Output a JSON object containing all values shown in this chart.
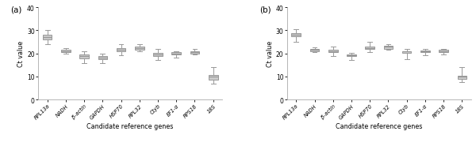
{
  "categories": [
    "RPL13a",
    "NADH",
    "β-actin",
    "GAPDH",
    "HSP70",
    "RPL32",
    "Ctyb",
    "EF1-α",
    "RPS18",
    "18S"
  ],
  "panel_a": {
    "whisker_low": [
      24.0,
      19.8,
      15.8,
      15.8,
      19.2,
      20.8,
      17.0,
      18.2,
      19.5,
      7.0
    ],
    "q1": [
      26.2,
      20.5,
      18.0,
      17.5,
      20.8,
      21.5,
      19.0,
      19.5,
      20.0,
      8.5
    ],
    "median": [
      27.2,
      21.0,
      18.8,
      18.2,
      21.5,
      22.2,
      19.5,
      20.0,
      20.5,
      9.8
    ],
    "q3": [
      28.0,
      21.5,
      19.5,
      18.8,
      22.2,
      23.0,
      20.2,
      20.5,
      21.0,
      10.5
    ],
    "whisker_high": [
      30.2,
      22.2,
      20.8,
      20.0,
      24.0,
      24.0,
      21.8,
      21.0,
      22.0,
      14.0
    ]
  },
  "panel_b": {
    "whisker_low": [
      25.0,
      20.5,
      19.0,
      17.0,
      20.5,
      21.5,
      17.5,
      19.2,
      19.5,
      7.5
    ],
    "q1": [
      27.5,
      21.0,
      20.5,
      18.8,
      21.8,
      22.0,
      20.2,
      20.5,
      20.5,
      9.0
    ],
    "median": [
      28.2,
      21.5,
      21.0,
      19.2,
      22.2,
      22.8,
      20.8,
      21.0,
      21.0,
      9.8
    ],
    "q3": [
      28.8,
      21.8,
      21.5,
      19.5,
      23.0,
      23.2,
      21.0,
      21.2,
      21.5,
      10.2
    ],
    "whisker_high": [
      30.5,
      22.5,
      22.8,
      20.2,
      25.0,
      24.0,
      21.8,
      22.0,
      22.0,
      14.0
    ]
  },
  "ylim": [
    0,
    40
  ],
  "yticks": [
    0,
    10,
    20,
    30,
    40
  ],
  "ylabel": "Ct value",
  "xlabel": "Candidate reference genes",
  "box_facecolor": "#cccccc",
  "box_edgecolor": "#999999",
  "median_color": "#999999",
  "whisker_color": "#999999",
  "cap_color": "#999999",
  "title_a": "(a)",
  "title_b": "(b)",
  "xtick_fontsize": 4.8,
  "ytick_fontsize": 5.5,
  "label_fontsize": 5.8,
  "panel_label_fontsize": 7.5
}
